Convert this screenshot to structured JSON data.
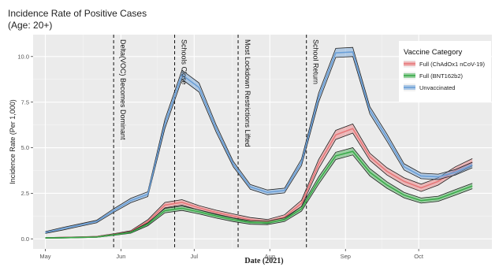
{
  "chart_data": {
    "type": "line",
    "title": "Incidence Rate of Positive Cases",
    "subtitle": "(Age: 20+)",
    "xlabel": "Date (2021)",
    "ylabel": "Incidence Rate (Per 1,000)",
    "ylim": [
      -0.55,
      11.2
    ],
    "xlim": [
      "2021-04-26",
      "2021-10-31"
    ],
    "grid": true,
    "legend": {
      "title": "Vaccine Category",
      "placement": "top-right"
    },
    "x_ticks": [
      {
        "date": "2021-05-01",
        "label": "May"
      },
      {
        "date": "2021-06-01",
        "label": "Jun"
      },
      {
        "date": "2021-07-01",
        "label": "Jul"
      },
      {
        "date": "2021-08-01",
        "label": "Aug"
      },
      {
        "date": "2021-09-01",
        "label": "Sep"
      },
      {
        "date": "2021-10-01",
        "label": "Oct"
      }
    ],
    "y_ticks": [
      {
        "value": 0,
        "label": "0.0"
      },
      {
        "value": 2.5,
        "label": "2.5"
      },
      {
        "value": 5,
        "label": "5.0"
      },
      {
        "value": 7.5,
        "label": "7.5"
      },
      {
        "value": 10,
        "label": "10.0"
      }
    ],
    "x": [
      "2021-05-01",
      "2021-05-08",
      "2021-05-15",
      "2021-05-22",
      "2021-05-29",
      "2021-06-05",
      "2021-06-12",
      "2021-06-19",
      "2021-06-26",
      "2021-07-03",
      "2021-07-10",
      "2021-07-17",
      "2021-07-24",
      "2021-07-31",
      "2021-08-07",
      "2021-08-14",
      "2021-08-21",
      "2021-08-28",
      "2021-09-04",
      "2021-09-11",
      "2021-09-18",
      "2021-09-25",
      "2021-10-02",
      "2021-10-09",
      "2021-10-16",
      "2021-10-23"
    ],
    "series": [
      {
        "name": "Full (ChAdOx1 nCoV-19)",
        "color": "#e8787a",
        "values": [
          0.05,
          0.07,
          0.09,
          0.12,
          0.25,
          0.4,
          0.95,
          1.85,
          2.0,
          1.7,
          1.45,
          1.25,
          1.05,
          0.95,
          1.2,
          1.95,
          4.1,
          5.7,
          6.05,
          4.5,
          3.7,
          3.15,
          2.8,
          3.15,
          3.75,
          4.2
        ],
        "lower": [
          0.03,
          0.05,
          0.07,
          0.1,
          0.22,
          0.35,
          0.85,
          1.7,
          1.85,
          1.58,
          1.33,
          1.13,
          0.93,
          0.84,
          1.08,
          1.78,
          3.85,
          5.45,
          5.8,
          4.3,
          3.5,
          2.95,
          2.6,
          2.95,
          3.55,
          4.0
        ],
        "upper": [
          0.07,
          0.09,
          0.11,
          0.14,
          0.28,
          0.45,
          1.05,
          2.0,
          2.15,
          1.82,
          1.57,
          1.37,
          1.17,
          1.06,
          1.32,
          2.12,
          4.35,
          5.95,
          6.3,
          4.7,
          3.9,
          3.35,
          3.0,
          3.35,
          3.95,
          4.4
        ]
      },
      {
        "name": "Full (BNT162b2)",
        "color": "#3aab4a",
        "values": [
          0.05,
          0.06,
          0.08,
          0.1,
          0.22,
          0.35,
          0.8,
          1.55,
          1.68,
          1.48,
          1.25,
          1.05,
          0.9,
          0.88,
          1.05,
          1.65,
          3.2,
          4.55,
          4.8,
          3.65,
          2.95,
          2.4,
          2.1,
          2.2,
          2.55,
          2.9
        ],
        "lower": [
          0.03,
          0.04,
          0.06,
          0.08,
          0.19,
          0.31,
          0.72,
          1.43,
          1.56,
          1.37,
          1.14,
          0.95,
          0.8,
          0.78,
          0.95,
          1.52,
          3.0,
          4.35,
          4.6,
          3.45,
          2.77,
          2.25,
          1.96,
          2.06,
          2.4,
          2.75
        ],
        "upper": [
          0.07,
          0.08,
          0.1,
          0.12,
          0.25,
          0.39,
          0.88,
          1.67,
          1.8,
          1.59,
          1.36,
          1.15,
          1.0,
          0.98,
          1.15,
          1.78,
          3.4,
          4.75,
          5.0,
          3.85,
          3.13,
          2.55,
          2.24,
          2.34,
          2.7,
          3.05
        ]
      },
      {
        "name": "Unvaccinated",
        "color": "#6a9fd8",
        "values": [
          0.35,
          0.55,
          0.75,
          0.95,
          1.55,
          2.1,
          2.45,
          6.3,
          9.0,
          8.3,
          6.05,
          4.1,
          2.85,
          2.55,
          2.65,
          4.2,
          7.75,
          10.2,
          10.25,
          7.05,
          5.55,
          3.95,
          3.45,
          3.4,
          3.65,
          4.05
        ],
        "lower": [
          0.3,
          0.48,
          0.68,
          0.88,
          1.45,
          1.98,
          2.32,
          6.05,
          8.75,
          8.05,
          5.85,
          3.95,
          2.72,
          2.42,
          2.52,
          4.02,
          7.5,
          9.95,
          10.0,
          6.85,
          5.35,
          3.78,
          3.3,
          3.25,
          3.5,
          3.9
        ],
        "upper": [
          0.4,
          0.62,
          0.82,
          1.02,
          1.65,
          2.22,
          2.58,
          6.55,
          9.25,
          8.55,
          6.25,
          4.25,
          2.98,
          2.68,
          2.78,
          4.38,
          8.0,
          10.45,
          10.5,
          7.25,
          5.75,
          4.12,
          3.6,
          3.55,
          3.8,
          4.2
        ]
      }
    ],
    "events": [
      {
        "date": "2021-05-29",
        "label": "Delta(VOC) Becomes Dominant"
      },
      {
        "date": "2021-06-23",
        "label": "Schools Close"
      },
      {
        "date": "2021-07-19",
        "label": "Most Lockdown Restrictions Lifted"
      },
      {
        "date": "2021-08-16",
        "label": "School Return"
      }
    ]
  }
}
